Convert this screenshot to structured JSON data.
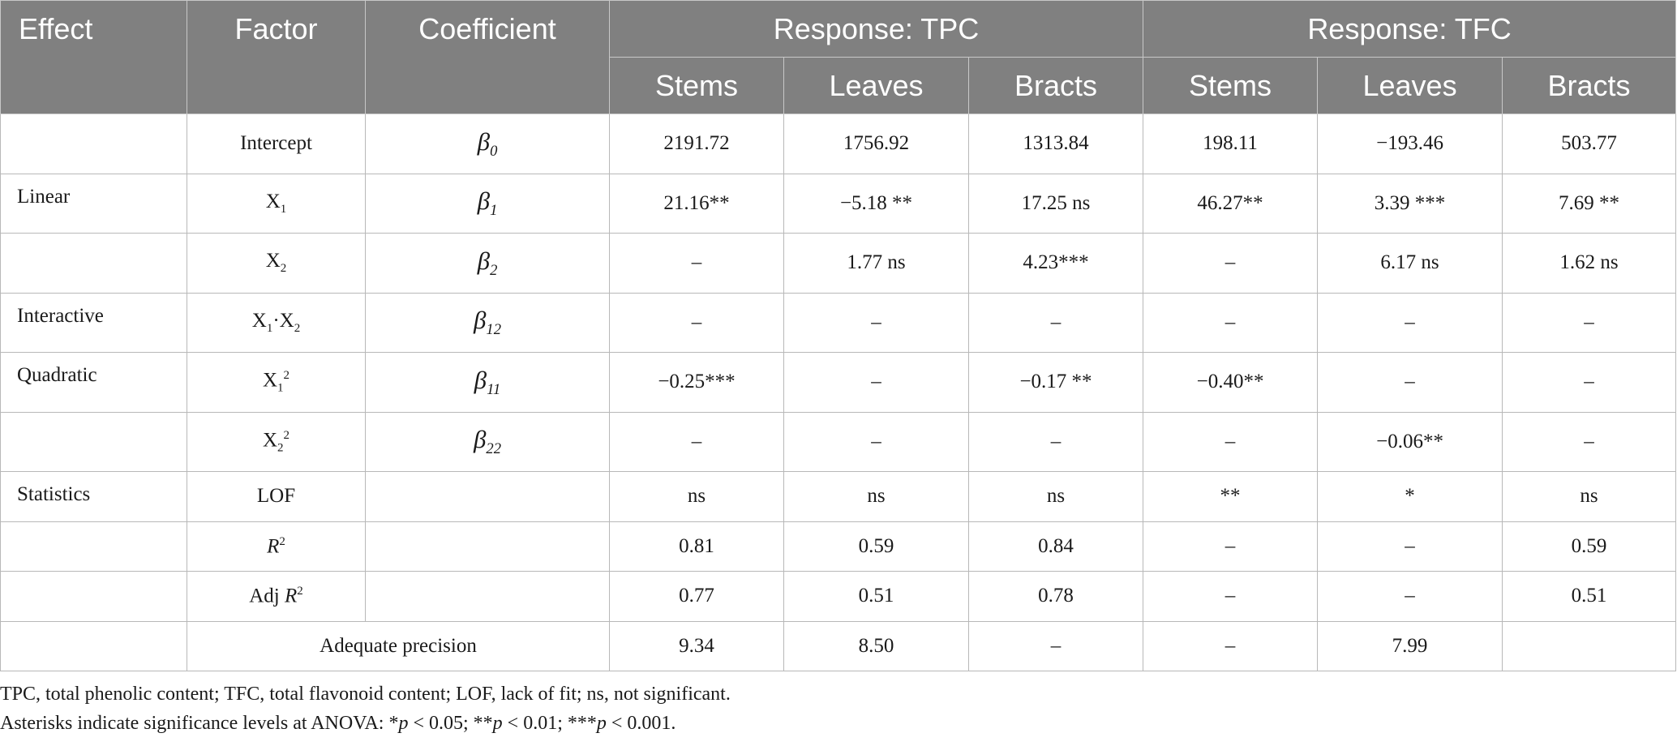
{
  "header": {
    "effect": "Effect",
    "factor": "Factor",
    "coefficient": "Coefficient",
    "group_tpc": "Response: TPC",
    "group_tfc": "Response: TFC",
    "sub": [
      "Stems",
      "Leaves",
      "Bracts",
      "Stems",
      "Leaves",
      "Bracts"
    ]
  },
  "rows": [
    {
      "effect": "",
      "factor": "Intercept",
      "coef_base": "β",
      "coef_sub": "0",
      "values": [
        "2191.72",
        "1756.92",
        "1313.84",
        "198.11",
        "−193.46",
        "503.77"
      ]
    },
    {
      "effect": "Linear",
      "factor_base": "X",
      "factor_sub": "1",
      "coef_base": "β",
      "coef_sub": "1",
      "values": [
        "21.16**",
        "−5.18 **",
        "17.25 ns",
        "46.27**",
        "3.39 ***",
        "7.69 **"
      ]
    },
    {
      "effect": "",
      "factor_base": "X",
      "factor_sub": "2",
      "coef_base": "β",
      "coef_sub": "2",
      "values": [
        "–",
        "1.77 ns",
        "4.23***",
        "–",
        "6.17 ns",
        "1.62 ns"
      ]
    },
    {
      "effect": "Interactive",
      "factor_base": "X",
      "factor_sub": "1",
      "factor_mid": "·X",
      "factor_sub2": "2",
      "coef_base": "β",
      "coef_sub": "12",
      "values": [
        "–",
        "–",
        "–",
        "–",
        "–",
        "–"
      ]
    },
    {
      "effect": "Quadratic",
      "factor_base": "X",
      "factor_sub": "1",
      "factor_sup": "2",
      "coef_base": "β",
      "coef_sub": "11",
      "values": [
        "−0.25***",
        "–",
        "−0.17 **",
        "−0.40**",
        "–",
        "–"
      ]
    },
    {
      "effect": "",
      "factor_base": "X",
      "factor_sub": "2",
      "factor_sup": "2",
      "coef_base": "β",
      "coef_sub": "22",
      "values": [
        "–",
        "–",
        "–",
        "–",
        "−0.06**",
        "–"
      ]
    },
    {
      "effect": "Statistics",
      "factor": "LOF",
      "coef": "",
      "values": [
        "ns",
        "ns",
        "ns",
        "**",
        "*",
        "ns"
      ]
    },
    {
      "effect": "",
      "factor_pre": "",
      "factor_italic": "R",
      "factor_sup": "2",
      "coef": "",
      "values": [
        "0.81",
        "0.59",
        "0.84",
        "–",
        "–",
        "0.59"
      ]
    },
    {
      "effect": "",
      "factor_pre": "Adj ",
      "factor_italic": "R",
      "factor_sup": "2",
      "coef": "",
      "values": [
        "0.77",
        "0.51",
        "0.78",
        "–",
        "–",
        "0.51"
      ]
    },
    {
      "effect": "",
      "factor": "Adequate precision",
      "values": [
        "9.34",
        "8.50",
        "–",
        "–",
        "7.99",
        ""
      ]
    }
  ],
  "footnotes": {
    "line1": "TPC, total phenolic content; TFC, total flavonoid content; LOF, lack of fit; ns, not significant.",
    "line2_prefix": "Asterisks indicate significance levels at ANOVA: *",
    "line2_p": "p",
    "line2_a": " < 0.05; **",
    "line2_b": " < 0.01; ***",
    "line2_c": " < 0.001."
  }
}
